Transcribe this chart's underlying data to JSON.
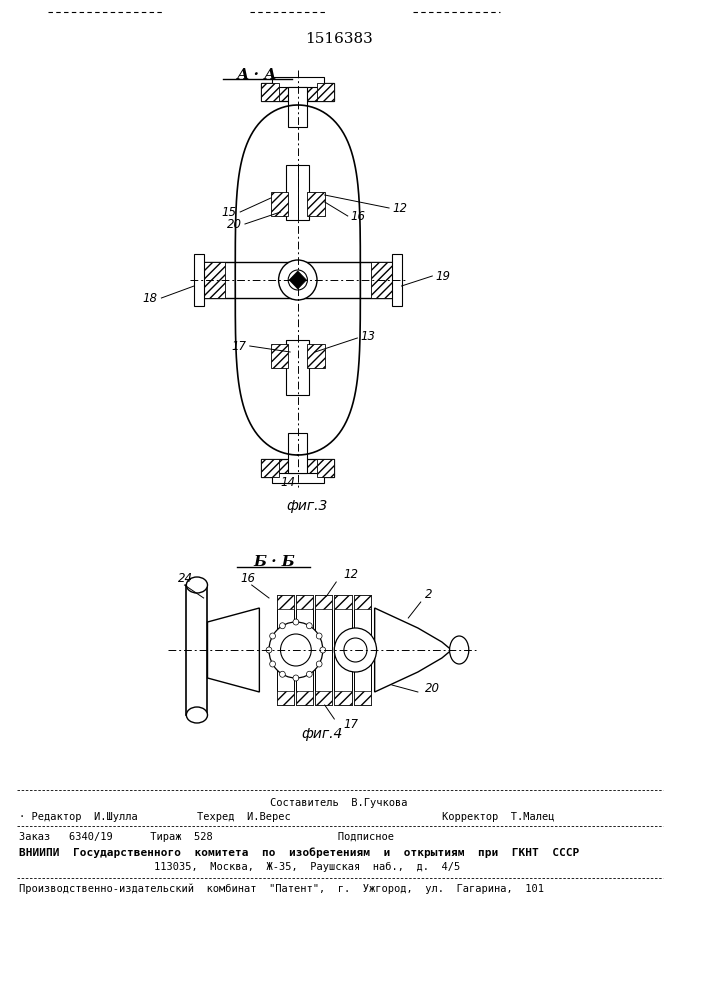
{
  "patent_number": "1516383",
  "section_label_1": "А · А",
  "section_label_2": "Б · Б",
  "fig_label_1": "фиг.3",
  "fig_label_2": "фиг.4",
  "bg_color": "#ffffff",
  "line_color": "#000000",
  "footer_sestavitel": "Составитель  В.Гучкова",
  "footer_redaktor": "· Редактор  И.Шулла",
  "footer_tehred": "Техред  И.Верес",
  "footer_korrektor": "Корректор  Т.Малец",
  "footer_zakaz": "Заказ   6340/19      Тираж  528                    Подписное",
  "footer_vniipи": "ВНИИПИ  Государственного  комитета  по  изобретениям  и  открытиям  при  ГКНТ  СССР",
  "footer_addr": "113035,  Москва,  Ж-35,  Раушская  наб.,  д.  4/5",
  "footer_patent": "Производственно-издательский  комбинат  \"Патент\",  г.  Ужгород,  ул.  Гагарина,  101"
}
